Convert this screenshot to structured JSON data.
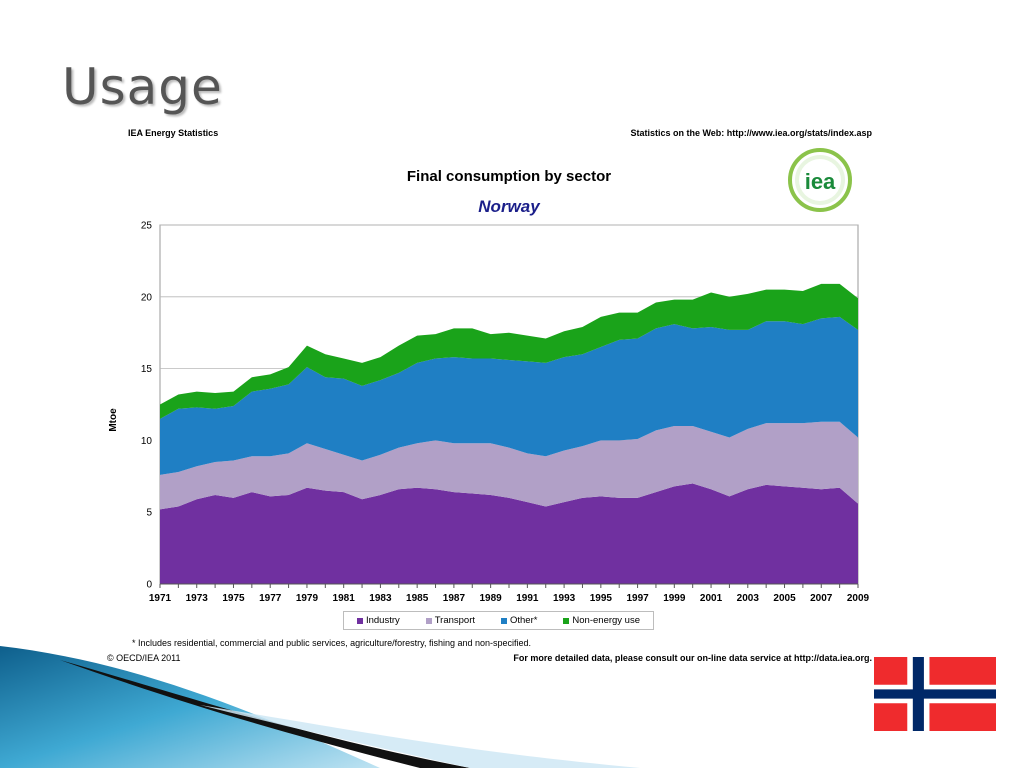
{
  "slide": {
    "title": "Usage"
  },
  "header": {
    "left": "IEA Energy Statistics",
    "right": "Statistics on the Web: http://www.iea.org/stats/index.asp"
  },
  "footer": {
    "footnote": "*  Includes residential, commercial and public services, agriculture/forestry, fishing and non-specified.",
    "copyright": "© OECD/IEA 2011",
    "more_data": "For more detailed data, please consult our on-line data service at http://data.iea.org."
  },
  "logo": {
    "text": "iea"
  },
  "colors": {
    "industry": "#7030a0",
    "transport": "#b1a0c7",
    "other": "#1f7fc4",
    "non_energy": "#1aa31a",
    "title_blue": "#1b1f8a"
  },
  "chart_data": {
    "type": "area",
    "stacked": true,
    "title": "Final consumption by sector",
    "subtitle": "Norway",
    "ylabel": "Mtoe",
    "xlabel": "",
    "ylim": [
      0,
      25
    ],
    "yticks": [
      "0",
      "5",
      "10",
      "15",
      "20",
      "25"
    ],
    "x": [
      1971,
      1972,
      1973,
      1974,
      1975,
      1976,
      1977,
      1978,
      1979,
      1980,
      1981,
      1982,
      1983,
      1984,
      1985,
      1986,
      1987,
      1988,
      1989,
      1990,
      1991,
      1992,
      1993,
      1994,
      1995,
      1996,
      1997,
      1998,
      1999,
      2000,
      2001,
      2002,
      2003,
      2004,
      2005,
      2006,
      2007,
      2008,
      2009
    ],
    "xtick_labels": [
      "1971",
      "1973",
      "1975",
      "1977",
      "1979",
      "1981",
      "1983",
      "1985",
      "1987",
      "1989",
      "1991",
      "1993",
      "1995",
      "1997",
      "1999",
      "2001",
      "2003",
      "2005",
      "2007",
      "2009"
    ],
    "grid": true,
    "legend_position": "bottom",
    "series": [
      {
        "name": "Industry",
        "values": [
          5.2,
          5.4,
          5.9,
          6.2,
          6.0,
          6.4,
          6.1,
          6.2,
          6.7,
          6.5,
          6.4,
          5.9,
          6.2,
          6.6,
          6.7,
          6.6,
          6.4,
          6.3,
          6.2,
          6.0,
          5.7,
          5.4,
          5.7,
          6.0,
          6.1,
          6.0,
          6.0,
          6.4,
          6.8,
          7.0,
          6.6,
          6.1,
          6.6,
          6.9,
          6.8,
          6.7,
          6.6,
          6.7,
          5.6
        ]
      },
      {
        "name": "Transport",
        "values": [
          2.4,
          2.4,
          2.3,
          2.3,
          2.6,
          2.5,
          2.8,
          2.9,
          3.1,
          2.9,
          2.6,
          2.7,
          2.8,
          2.9,
          3.1,
          3.4,
          3.4,
          3.5,
          3.6,
          3.5,
          3.4,
          3.5,
          3.6,
          3.6,
          3.9,
          4.0,
          4.1,
          4.3,
          4.2,
          4.0,
          4.0,
          4.1,
          4.2,
          4.3,
          4.4,
          4.5,
          4.7,
          4.6,
          4.6
        ]
      },
      {
        "name": "Other*",
        "values": [
          3.9,
          4.4,
          4.1,
          3.7,
          3.8,
          4.5,
          4.7,
          4.8,
          5.3,
          5.0,
          5.3,
          5.2,
          5.2,
          5.2,
          5.6,
          5.7,
          6.0,
          5.9,
          5.9,
          6.1,
          6.4,
          6.5,
          6.5,
          6.4,
          6.5,
          7.0,
          7.0,
          7.1,
          7.1,
          6.8,
          7.3,
          7.5,
          6.9,
          7.1,
          7.1,
          6.9,
          7.2,
          7.3,
          7.5
        ]
      },
      {
        "name": "Non-energy use",
        "values": [
          1.0,
          1.0,
          1.1,
          1.1,
          1.0,
          1.0,
          1.0,
          1.2,
          1.5,
          1.6,
          1.4,
          1.6,
          1.6,
          1.9,
          1.9,
          1.7,
          2.0,
          2.1,
          1.7,
          1.9,
          1.8,
          1.7,
          1.8,
          1.9,
          2.1,
          1.9,
          1.8,
          1.8,
          1.7,
          2.0,
          2.4,
          2.3,
          2.5,
          2.2,
          2.2,
          2.3,
          2.4,
          2.3,
          2.2
        ]
      }
    ]
  }
}
